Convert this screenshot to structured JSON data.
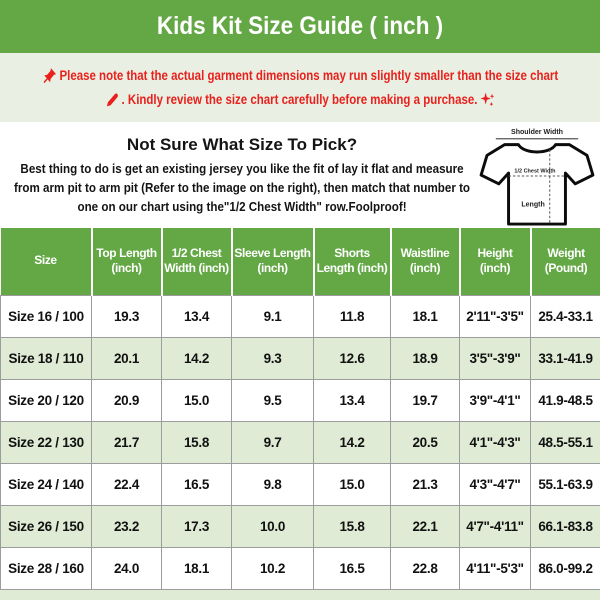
{
  "title": "Kids Kit Size Guide ( inch )",
  "colors": {
    "header_green": "#64a846",
    "notice_background": "#e9efe3",
    "alt_row_green": "#dfebd5",
    "notice_text_red": "#e9201c"
  },
  "notice": {
    "line1": "Please note that the actual garment dimensions may run slightly smaller than the size chart",
    "line2": ". Kindly review the size chart carefully before making a purchase."
  },
  "guide": {
    "heading": "Not Sure What Size To Pick?",
    "body": "Best thing to do is get an existing jersey you like the fit of lay it flat and measure from arm pit to arm pit (Refer to the image on the right), then match that number to one on our chart using the\"1/2 Chest Width\" row.Foolproof!",
    "diagram": {
      "shoulder_label": "Shoulder Width",
      "chest_label": "1/2 Chest Width",
      "length_label": "Length"
    }
  },
  "table": {
    "columns": [
      "Size",
      "Top Length (inch)",
      "1/2 Chest Width (inch)",
      "Sleeve Length (inch)",
      "Shorts Length (inch)",
      "Waistline (inch)",
      "Height (inch)",
      "Weight (Pound)"
    ],
    "rows": [
      [
        "Size 16 / 100",
        "19.3",
        "13.4",
        "9.1",
        "11.8",
        "18.1",
        "2'11\"-3'5\"",
        "25.4-33.1"
      ],
      [
        "Size 18 / 110",
        "20.1",
        "14.2",
        "9.3",
        "12.6",
        "18.9",
        "3'5\"-3'9\"",
        "33.1-41.9"
      ],
      [
        "Size 20 / 120",
        "20.9",
        "15.0",
        "9.5",
        "13.4",
        "19.7",
        "3'9\"-4'1\"",
        "41.9-48.5"
      ],
      [
        "Size 22 / 130",
        "21.7",
        "15.8",
        "9.7",
        "14.2",
        "20.5",
        "4'1\"-4'3\"",
        "48.5-55.1"
      ],
      [
        "Size 24 / 140",
        "22.4",
        "16.5",
        "9.8",
        "15.0",
        "21.3",
        "4'3\"-4'7\"",
        "55.1-63.9"
      ],
      [
        "Size 26 / 150",
        "23.2",
        "17.3",
        "10.0",
        "15.8",
        "22.1",
        "4'7\"-4'11\"",
        "66.1-83.8"
      ],
      [
        "Size 28 / 160",
        "24.0",
        "18.1",
        "10.2",
        "16.5",
        "22.8",
        "4'11\"-5'3\"",
        "86.0-99.2"
      ]
    ]
  }
}
